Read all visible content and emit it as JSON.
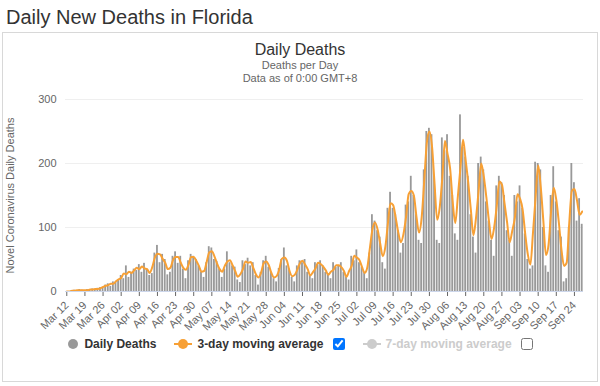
{
  "page_title": "Daily New Deaths in Florida",
  "chart_data": {
    "type": "bar",
    "title": "Daily Deaths",
    "subtitle": [
      "Deaths per Day",
      "Data as of 0:00 GMT+8"
    ],
    "y_label": "Novel Coronavirus Daily Deaths",
    "categories": [
      "Mar 12",
      null,
      null,
      null,
      null,
      null,
      null,
      "Mar 19",
      null,
      null,
      null,
      null,
      null,
      null,
      "Mar 26",
      null,
      null,
      null,
      null,
      null,
      null,
      "Apr 02",
      null,
      null,
      null,
      null,
      null,
      null,
      "Apr 09",
      null,
      null,
      null,
      null,
      null,
      null,
      "Apr 16",
      null,
      null,
      null,
      null,
      null,
      null,
      "Apr 23",
      null,
      null,
      null,
      null,
      null,
      null,
      "Apr 30",
      null,
      null,
      null,
      null,
      null,
      null,
      "May 07",
      null,
      null,
      null,
      null,
      null,
      null,
      "May 14",
      null,
      null,
      null,
      null,
      null,
      null,
      "May 21",
      null,
      null,
      null,
      null,
      null,
      null,
      "May 28",
      null,
      null,
      null,
      null,
      null,
      null,
      "Jun 04",
      null,
      null,
      null,
      null,
      null,
      null,
      "Jun 11",
      null,
      null,
      null,
      null,
      null,
      null,
      "Jun 18",
      null,
      null,
      null,
      null,
      null,
      null,
      "Jun 25",
      null,
      null,
      null,
      null,
      null,
      null,
      "Jul 02",
      null,
      null,
      null,
      null,
      null,
      null,
      "Jul 09",
      null,
      null,
      null,
      null,
      null,
      null,
      "Jul 16",
      null,
      null,
      null,
      null,
      null,
      null,
      "Jul 23",
      null,
      null,
      null,
      null,
      null,
      null,
      "Jul 30",
      null,
      null,
      null,
      null,
      null,
      null,
      "Aug 06",
      null,
      null,
      null,
      null,
      null,
      null,
      "Aug 13",
      null,
      null,
      null,
      null,
      null,
      null,
      "Aug 20",
      null,
      null,
      null,
      null,
      null,
      null,
      "Aug 27",
      null,
      null,
      null,
      null,
      null,
      null,
      "Sep 03",
      null,
      null,
      null,
      null,
      null,
      null,
      "Sep 10",
      null,
      null,
      null,
      null,
      null,
      null,
      "Sep 17",
      null,
      null,
      null,
      null,
      null,
      null,
      "Sep 24",
      null,
      null,
      null
    ],
    "series": [
      {
        "name": "Daily Deaths",
        "type": "bar",
        "color": "#999999",
        "values": [
          0,
          0,
          1,
          2,
          0,
          3,
          2,
          1,
          3,
          2,
          4,
          2,
          5,
          6,
          5,
          10,
          12,
          8,
          15,
          14,
          18,
          25,
          20,
          40,
          22,
          30,
          35,
          33,
          42,
          30,
          44,
          35,
          25,
          28,
          60,
          72,
          45,
          58,
          50,
          26,
          30,
          55,
          62,
          44,
          55,
          35,
          20,
          48,
          58,
          55,
          50,
          40,
          30,
          22,
          45,
          70,
          68,
          50,
          47,
          35,
          22,
          35,
          62,
          45,
          40,
          38,
          18,
          14,
          48,
          42,
          52,
          40,
          45,
          25,
          10,
          30,
          48,
          55,
          38,
          30,
          20,
          15,
          36,
          50,
          68,
          40,
          35,
          22,
          15,
          40,
          48,
          45,
          50,
          30,
          25,
          20,
          45,
          42,
          48,
          40,
          30,
          28,
          20,
          45,
          38,
          40,
          45,
          30,
          22,
          18,
          55,
          48,
          65,
          45,
          38,
          30,
          20,
          60,
          120,
          110,
          95,
          85,
          45,
          35,
          130,
          155,
          130,
          120,
          95,
          60,
          75,
          135,
          140,
          180,
          150,
          120,
          80,
          75,
          190,
          250,
          255,
          245,
          180,
          80,
          75,
          240,
          220,
          245,
          180,
          150,
          90,
          80,
          276,
          225,
          210,
          180,
          120,
          85,
          60,
          200,
          210,
          190,
          140,
          110,
          80,
          55,
          165,
          180,
          170,
          150,
          95,
          80,
          55,
          150,
          140,
          165,
          130,
          90,
          50,
          35,
          40,
          202,
          200,
          190,
          100,
          40,
          30,
          150,
          195,
          140,
          95,
          85,
          15,
          20,
          100,
          200,
          170,
          110,
          145,
          105
        ]
      },
      {
        "name": "3-day moving average",
        "type": "line",
        "color": "#f7a035",
        "values": [
          0,
          0,
          1,
          1,
          2,
          2,
          2,
          2,
          2,
          3,
          3,
          4,
          4,
          5,
          7,
          9,
          10,
          12,
          12,
          16,
          19,
          21,
          28,
          27,
          31,
          29,
          33,
          37,
          35,
          39,
          36,
          35,
          29,
          38,
          53,
          59,
          58,
          51,
          45,
          35,
          37,
          49,
          54,
          54,
          45,
          37,
          34,
          42,
          54,
          54,
          48,
          40,
          31,
          32,
          46,
          61,
          63,
          55,
          44,
          35,
          31,
          40,
          47,
          49,
          41,
          32,
          23,
          27,
          35,
          47,
          45,
          46,
          37,
          27,
          22,
          29,
          44,
          47,
          41,
          29,
          22,
          24,
          34,
          51,
          53,
          48,
          32,
          24,
          26,
          34,
          44,
          48,
          42,
          35,
          25,
          30,
          36,
          45,
          43,
          39,
          33,
          26,
          31,
          34,
          41,
          41,
          38,
          32,
          23,
          32,
          40,
          56,
          53,
          49,
          38,
          29,
          37,
          67,
          97,
          108,
          97,
          75,
          55,
          70,
          107,
          138,
          135,
          115,
          92,
          77,
          90,
          117,
          152,
          157,
          150,
          117,
          92,
          115,
          172,
          232,
          250,
          227,
          168,
          112,
          132,
          178,
          235,
          215,
          192,
          140,
          107,
          149,
          194,
          237,
          205,
          170,
          128,
          88,
          115,
          157,
          200,
          180,
          147,
          110,
          82,
          100,
          133,
          172,
          167,
          138,
          108,
          77,
          95,
          115,
          152,
          145,
          128,
          90,
          58,
          42,
          92,
          147,
          197,
          163,
          110,
          57,
          73,
          125,
          162,
          143,
          107,
          65,
          40,
          45,
          107,
          157,
          160,
          142,
          120,
          125
        ]
      },
      {
        "name": "7-day moving average",
        "type": "line",
        "color": "#cccccc",
        "values": [
          null,
          null,
          null,
          null,
          null,
          null,
          null,
          null,
          null,
          null,
          null,
          null,
          null,
          null,
          null,
          null,
          null,
          null,
          null,
          null,
          null,
          null,
          null,
          null,
          null,
          null,
          null,
          null,
          null,
          null,
          null,
          null,
          null,
          null,
          null,
          null,
          null,
          null,
          null,
          null,
          null,
          null,
          null,
          null,
          null,
          null,
          null,
          null,
          null,
          null,
          null,
          null,
          null,
          null,
          null,
          null,
          null,
          null,
          null,
          null,
          null,
          null,
          null,
          null,
          null,
          null,
          null,
          null,
          null,
          null,
          null,
          null,
          null,
          null,
          null,
          null,
          null,
          null,
          null,
          null,
          null,
          null,
          null,
          null,
          null,
          null,
          null,
          null,
          null,
          null,
          null,
          null,
          null,
          null,
          null,
          null,
          null,
          null,
          null,
          null,
          null,
          null,
          null,
          null,
          null,
          null,
          null,
          null,
          null,
          null,
          null,
          null,
          null,
          null,
          null,
          null,
          null,
          null,
          null,
          null,
          null,
          null,
          null,
          null,
          null,
          null,
          null,
          null,
          null,
          null,
          null,
          null,
          null,
          null,
          null,
          null,
          null,
          null,
          null,
          null,
          null,
          null,
          null,
          null,
          null,
          null,
          null,
          null,
          null,
          null,
          null,
          null,
          null,
          null,
          null,
          null,
          null,
          null,
          null,
          null,
          null,
          null,
          null,
          null,
          null,
          null,
          null,
          null,
          null,
          null,
          null,
          null,
          null,
          null,
          null,
          null,
          null,
          null,
          null,
          null,
          null,
          null,
          null,
          null,
          null,
          null,
          null,
          null,
          null,
          null,
          null,
          null,
          null,
          null,
          null,
          null,
          null,
          null,
          null,
          null
        ]
      }
    ],
    "ylim": [
      0,
      300
    ],
    "yticks": [
      0,
      100,
      200,
      300
    ],
    "grid": true,
    "legend": "bottom"
  }
}
